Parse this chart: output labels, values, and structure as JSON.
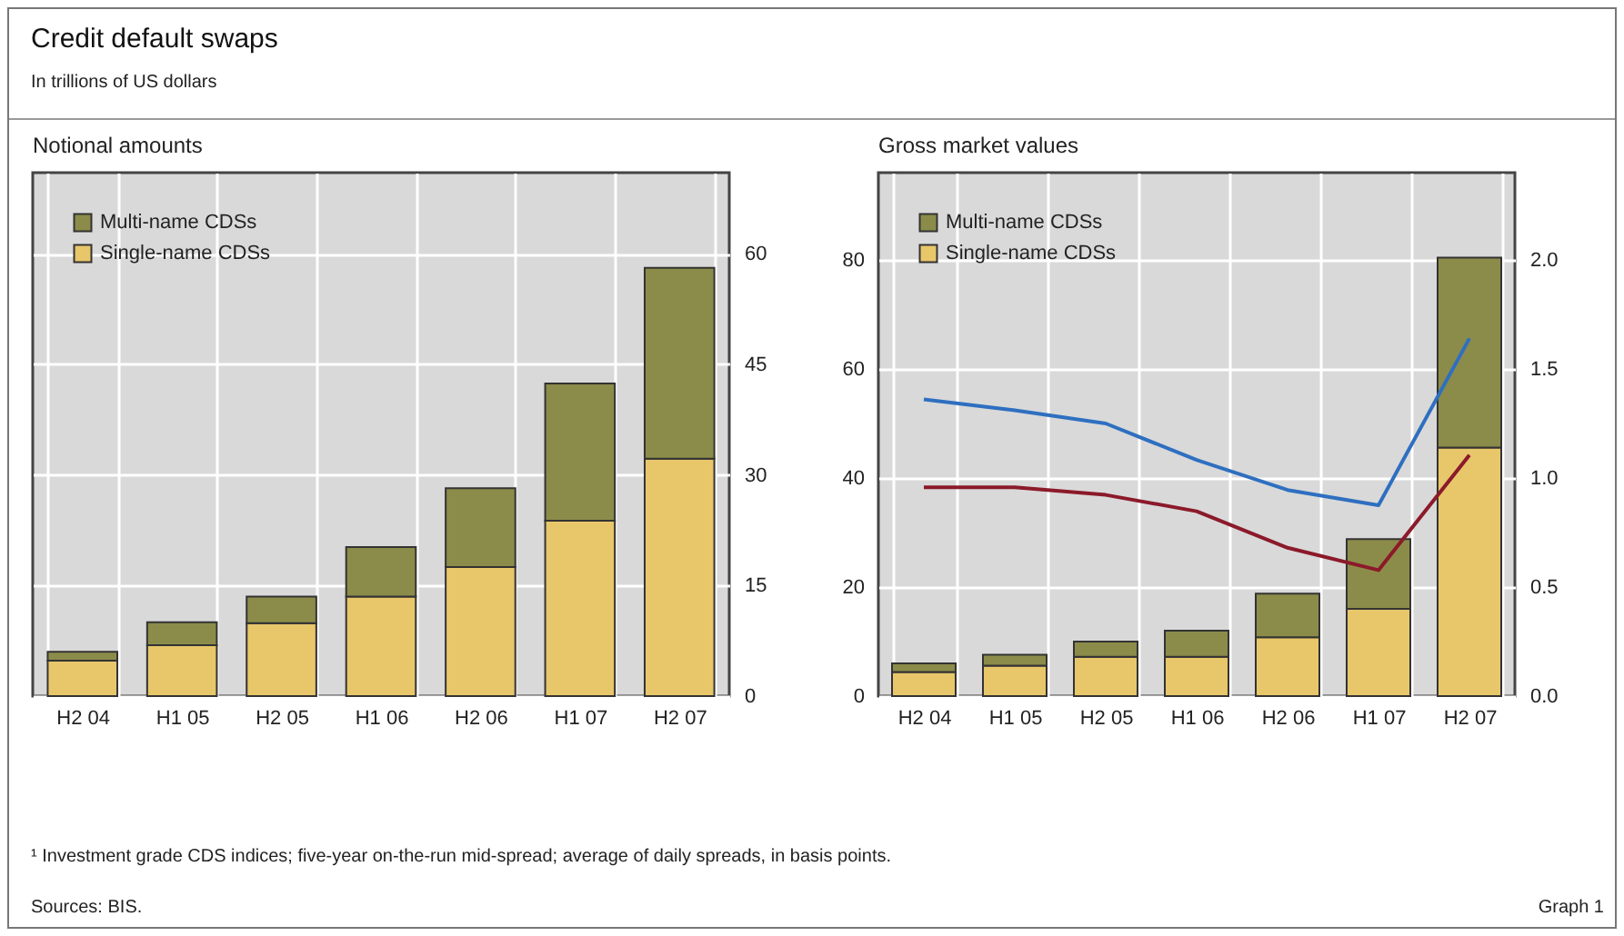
{
  "chart_data": [
    {
      "type": "other",
      "title": "Credit default swaps",
      "subtitle": "In trillions of US dollars",
      "annotations": [
        "¹ Investment grade CDS indices; five-year on-the-run mid-spread; average of daily spreads, in basis points.",
        "Sources: BIS.",
        "Graph 1"
      ]
    },
    {
      "type": "bar",
      "title": "Notional amounts",
      "stacked": true,
      "categories": [
        "H2 04",
        "H1 05",
        "H2 05",
        "H1 06",
        "H2 06",
        "H1 07",
        "H2 07"
      ],
      "series": [
        {
          "name": "Single-name CDSs",
          "color": "#e8c66a",
          "values": [
            4.8,
            6.9,
            9.9,
            13.5,
            17.5,
            23.8,
            32.2
          ]
        },
        {
          "name": "Multi-name CDSs",
          "color": "#8c8c4a",
          "values": [
            1.2,
            3.1,
            3.6,
            6.7,
            10.7,
            18.6,
            25.9
          ]
        }
      ],
      "ylim": [
        0,
        71
      ],
      "yticks": [
        0,
        15,
        30,
        45,
        60
      ],
      "grid": true,
      "legend": "top left"
    },
    {
      "type": "bar",
      "title": "Gross market values",
      "stacked": true,
      "categories": [
        "H2 04",
        "H1 05",
        "H2 05",
        "H1 06",
        "H2 06",
        "H1 07",
        "H2 07"
      ],
      "series": [
        {
          "name": "Single-name CDSs",
          "color": "#e8c66a",
          "axis": "y2",
          "values": [
            0.11,
            0.14,
            0.18,
            0.18,
            0.27,
            0.4,
            1.14
          ]
        },
        {
          "name": "Multi-name CDSs",
          "color": "#8c8c4a",
          "axis": "y2",
          "values": [
            0.04,
            0.05,
            0.07,
            0.12,
            0.2,
            0.32,
            0.87
          ]
        },
        {
          "type": "line",
          "color": "#8b1a2a",
          "values": [
            38.3,
            38.3,
            36.9,
            33.9,
            27.2,
            23.1,
            44.2
          ]
        },
        {
          "type": "line",
          "color": "#2e6fc0",
          "values": [
            54.4,
            52.4,
            50,
            43.3,
            37.8,
            35,
            65.6
          ]
        }
      ],
      "ylim": [
        0,
        96
      ],
      "yticks": [
        0,
        20,
        40,
        60,
        80
      ],
      "y2lim": [
        0,
        2.4
      ],
      "y2ticks": [
        {
          "value": 0,
          "label": "0.0"
        },
        {
          "value": 0.5,
          "label": "0.5"
        },
        {
          "value": 1,
          "label": "1.0"
        },
        {
          "value": 1.5,
          "label": "1.5"
        },
        {
          "value": 2,
          "label": "2.0"
        }
      ],
      "grid": true,
      "legend": "top left",
      "marker": "none",
      "line_style": "solid"
    }
  ]
}
